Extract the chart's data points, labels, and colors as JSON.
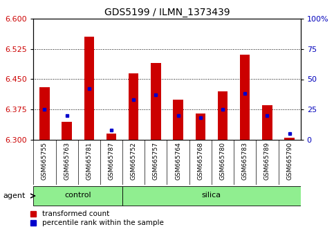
{
  "title": "GDS5199 / ILMN_1373439",
  "samples": [
    "GSM665755",
    "GSM665763",
    "GSM665781",
    "GSM665787",
    "GSM665752",
    "GSM665757",
    "GSM665764",
    "GSM665768",
    "GSM665780",
    "GSM665783",
    "GSM665789",
    "GSM665790"
  ],
  "groups": [
    "control",
    "control",
    "control",
    "control",
    "silica",
    "silica",
    "silica",
    "silica",
    "silica",
    "silica",
    "silica",
    "silica"
  ],
  "transformed_count": [
    6.43,
    6.345,
    6.555,
    6.315,
    6.465,
    6.49,
    6.4,
    6.365,
    6.42,
    6.51,
    6.385,
    6.305
  ],
  "percentile_rank": [
    25,
    20,
    42,
    8,
    33,
    37,
    20,
    18,
    25,
    38,
    20,
    5
  ],
  "ylim_left": [
    6.3,
    6.6
  ],
  "ylim_right": [
    0,
    100
  ],
  "yticks_left": [
    6.3,
    6.375,
    6.45,
    6.525,
    6.6
  ],
  "yticks_right": [
    0,
    25,
    50,
    75,
    100
  ],
  "bar_color": "#cc0000",
  "blue_color": "#0000cc",
  "base_value": 6.3,
  "green_color": "#90EE90",
  "gray_color": "#c8c8c8",
  "tick_label_color_left": "#cc0000",
  "tick_label_color_right": "#0000bb",
  "agent_label": "agent",
  "legend_items": [
    "transformed count",
    "percentile rank within the sample"
  ],
  "bar_width": 0.45
}
